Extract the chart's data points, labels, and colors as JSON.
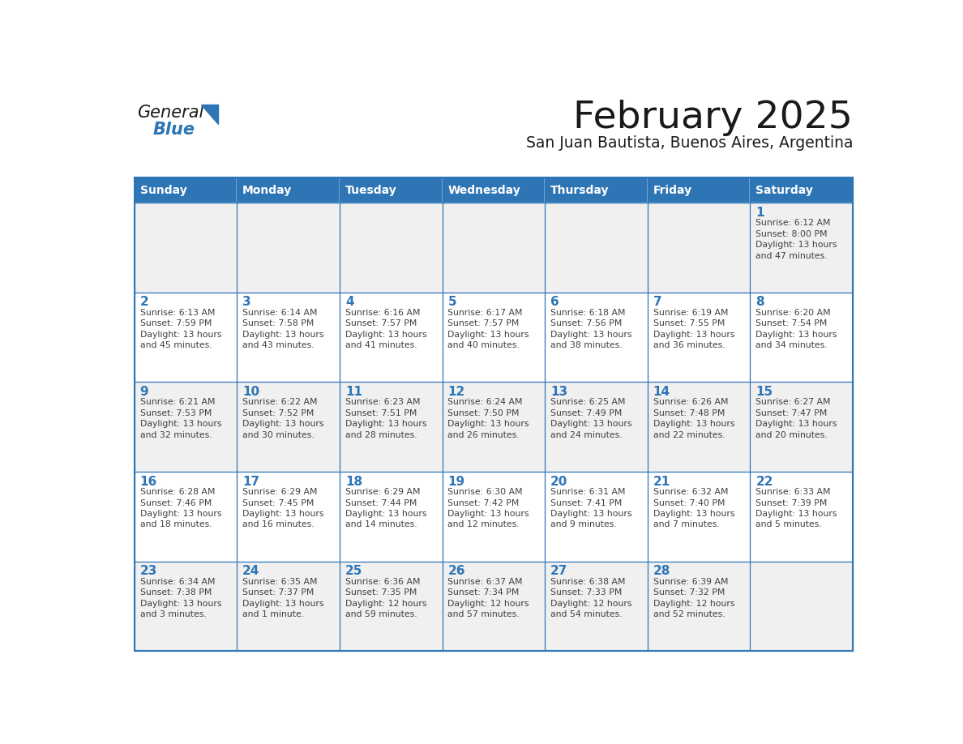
{
  "title": "February 2025",
  "subtitle": "San Juan Bautista, Buenos Aires, Argentina",
  "header_bg": "#2E75B6",
  "header_text_color": "#FFFFFF",
  "cell_bg_even": "#FFFFFF",
  "cell_bg_odd": "#F0F0F0",
  "border_color": "#2E75B6",
  "title_color": "#1a1a1a",
  "subtitle_color": "#1a1a1a",
  "day_number_color": "#2E75B6",
  "cell_text_color": "#404040",
  "days_of_week": [
    "Sunday",
    "Monday",
    "Tuesday",
    "Wednesday",
    "Thursday",
    "Friday",
    "Saturday"
  ],
  "calendar_data": [
    [
      null,
      null,
      null,
      null,
      null,
      null,
      {
        "day": 1,
        "sunrise": "6:12 AM",
        "sunset": "8:00 PM",
        "daylight": "13 hours",
        "daylight2": "and 47 minutes."
      }
    ],
    [
      {
        "day": 2,
        "sunrise": "6:13 AM",
        "sunset": "7:59 PM",
        "daylight": "13 hours",
        "daylight2": "and 45 minutes."
      },
      {
        "day": 3,
        "sunrise": "6:14 AM",
        "sunset": "7:58 PM",
        "daylight": "13 hours",
        "daylight2": "and 43 minutes."
      },
      {
        "day": 4,
        "sunrise": "6:16 AM",
        "sunset": "7:57 PM",
        "daylight": "13 hours",
        "daylight2": "and 41 minutes."
      },
      {
        "day": 5,
        "sunrise": "6:17 AM",
        "sunset": "7:57 PM",
        "daylight": "13 hours",
        "daylight2": "and 40 minutes."
      },
      {
        "day": 6,
        "sunrise": "6:18 AM",
        "sunset": "7:56 PM",
        "daylight": "13 hours",
        "daylight2": "and 38 minutes."
      },
      {
        "day": 7,
        "sunrise": "6:19 AM",
        "sunset": "7:55 PM",
        "daylight": "13 hours",
        "daylight2": "and 36 minutes."
      },
      {
        "day": 8,
        "sunrise": "6:20 AM",
        "sunset": "7:54 PM",
        "daylight": "13 hours",
        "daylight2": "and 34 minutes."
      }
    ],
    [
      {
        "day": 9,
        "sunrise": "6:21 AM",
        "sunset": "7:53 PM",
        "daylight": "13 hours",
        "daylight2": "and 32 minutes."
      },
      {
        "day": 10,
        "sunrise": "6:22 AM",
        "sunset": "7:52 PM",
        "daylight": "13 hours",
        "daylight2": "and 30 minutes."
      },
      {
        "day": 11,
        "sunrise": "6:23 AM",
        "sunset": "7:51 PM",
        "daylight": "13 hours",
        "daylight2": "and 28 minutes."
      },
      {
        "day": 12,
        "sunrise": "6:24 AM",
        "sunset": "7:50 PM",
        "daylight": "13 hours",
        "daylight2": "and 26 minutes."
      },
      {
        "day": 13,
        "sunrise": "6:25 AM",
        "sunset": "7:49 PM",
        "daylight": "13 hours",
        "daylight2": "and 24 minutes."
      },
      {
        "day": 14,
        "sunrise": "6:26 AM",
        "sunset": "7:48 PM",
        "daylight": "13 hours",
        "daylight2": "and 22 minutes."
      },
      {
        "day": 15,
        "sunrise": "6:27 AM",
        "sunset": "7:47 PM",
        "daylight": "13 hours",
        "daylight2": "and 20 minutes."
      }
    ],
    [
      {
        "day": 16,
        "sunrise": "6:28 AM",
        "sunset": "7:46 PM",
        "daylight": "13 hours",
        "daylight2": "and 18 minutes."
      },
      {
        "day": 17,
        "sunrise": "6:29 AM",
        "sunset": "7:45 PM",
        "daylight": "13 hours",
        "daylight2": "and 16 minutes."
      },
      {
        "day": 18,
        "sunrise": "6:29 AM",
        "sunset": "7:44 PM",
        "daylight": "13 hours",
        "daylight2": "and 14 minutes."
      },
      {
        "day": 19,
        "sunrise": "6:30 AM",
        "sunset": "7:42 PM",
        "daylight": "13 hours",
        "daylight2": "and 12 minutes."
      },
      {
        "day": 20,
        "sunrise": "6:31 AM",
        "sunset": "7:41 PM",
        "daylight": "13 hours",
        "daylight2": "and 9 minutes."
      },
      {
        "day": 21,
        "sunrise": "6:32 AM",
        "sunset": "7:40 PM",
        "daylight": "13 hours",
        "daylight2": "and 7 minutes."
      },
      {
        "day": 22,
        "sunrise": "6:33 AM",
        "sunset": "7:39 PM",
        "daylight": "13 hours",
        "daylight2": "and 5 minutes."
      }
    ],
    [
      {
        "day": 23,
        "sunrise": "6:34 AM",
        "sunset": "7:38 PM",
        "daylight": "13 hours",
        "daylight2": "and 3 minutes."
      },
      {
        "day": 24,
        "sunrise": "6:35 AM",
        "sunset": "7:37 PM",
        "daylight": "13 hours",
        "daylight2": "and 1 minute."
      },
      {
        "day": 25,
        "sunrise": "6:36 AM",
        "sunset": "7:35 PM",
        "daylight": "12 hours",
        "daylight2": "and 59 minutes."
      },
      {
        "day": 26,
        "sunrise": "6:37 AM",
        "sunset": "7:34 PM",
        "daylight": "12 hours",
        "daylight2": "and 57 minutes."
      },
      {
        "day": 27,
        "sunrise": "6:38 AM",
        "sunset": "7:33 PM",
        "daylight": "12 hours",
        "daylight2": "and 54 minutes."
      },
      {
        "day": 28,
        "sunrise": "6:39 AM",
        "sunset": "7:32 PM",
        "daylight": "12 hours",
        "daylight2": "and 52 minutes."
      },
      null
    ]
  ],
  "logo_general_color": "#1a1a1a",
  "logo_blue_color": "#2E75B6",
  "logo_triangle_color": "#2E75B6"
}
